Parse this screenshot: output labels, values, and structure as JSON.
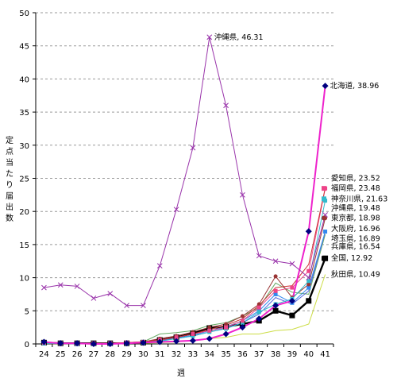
{
  "chart_data": {
    "type": "line",
    "xlabel": "週",
    "ylabel": "定点当たり届出数",
    "ylim": [
      0,
      50
    ],
    "yticks": [
      0,
      5,
      10,
      15,
      20,
      25,
      30,
      35,
      40,
      45,
      50
    ],
    "grid": "horizontal-dashed",
    "categories": [
      "24",
      "25",
      "26",
      "27",
      "28",
      "29",
      "30",
      "31",
      "32",
      "33",
      "34",
      "35",
      "36",
      "37",
      "38",
      "39",
      "40",
      "41"
    ],
    "series": [
      {
        "name": "沖縄県",
        "color": "#9933aa",
        "marker": "cross",
        "width": 1,
        "values": [
          8.5,
          8.9,
          8.7,
          6.9,
          7.6,
          5.8,
          5.8,
          11.8,
          20.3,
          29.6,
          46.31,
          36.0,
          22.5,
          13.3,
          12.5,
          12.1,
          10.0,
          19.48
        ],
        "label": "沖縄県, 46.31",
        "label_at": 10
      },
      {
        "name": "北海道",
        "color": "#ee22cc",
        "marker": "diamond",
        "marker_color": "#000080",
        "width": 2,
        "values": [
          0.3,
          0.1,
          0.1,
          0.0,
          0.0,
          0.1,
          0.2,
          0.3,
          0.4,
          0.5,
          0.8,
          1.5,
          2.5,
          3.8,
          5.8,
          6.5,
          17.0,
          38.96
        ],
        "label": "北海道, 38.96",
        "label_at": 17
      },
      {
        "name": "愛知県",
        "color": "#cc3333",
        "marker": "none",
        "width": 1,
        "values": [
          0.2,
          0.1,
          0.1,
          0.1,
          0.1,
          0.2,
          0.3,
          0.6,
          1.0,
          1.5,
          2.2,
          2.8,
          3.8,
          5.8,
          8.5,
          8.8,
          12.0,
          23.52
        ]
      },
      {
        "name": "福岡県",
        "color": "#ee4488",
        "marker": "square",
        "marker_color": "#ee4488",
        "width": 1,
        "values": [
          0.2,
          0.1,
          0.1,
          0.1,
          0.1,
          0.2,
          0.3,
          0.6,
          1.0,
          1.5,
          2.0,
          2.5,
          3.5,
          5.5,
          8.0,
          8.5,
          11.0,
          23.48
        ]
      },
      {
        "name": "神奈川県",
        "color": "#33bbcc",
        "marker": "square",
        "marker_color": "#33bbcc",
        "width": 1,
        "values": [
          0.1,
          0.1,
          0.1,
          0.1,
          0.1,
          0.1,
          0.2,
          0.4,
          0.8,
          1.2,
          1.8,
          2.3,
          3.2,
          4.8,
          6.0,
          6.8,
          9.5,
          21.63
        ]
      },
      {
        "name": "東京都",
        "color": "#993333",
        "marker": "circle",
        "marker_color": "#993333",
        "width": 1,
        "values": [
          0.2,
          0.1,
          0.1,
          0.1,
          0.1,
          0.2,
          0.3,
          0.8,
          1.2,
          1.8,
          2.5,
          3.0,
          4.2,
          6.0,
          10.2,
          7.0,
          9.0,
          18.98
        ]
      },
      {
        "name": "大阪府",
        "color": "#3388ee",
        "marker": "square",
        "marker_color": "#3388ee",
        "width": 1,
        "values": [
          0.1,
          0.1,
          0.0,
          0.0,
          0.0,
          0.1,
          0.2,
          0.5,
          0.9,
          1.3,
          2.0,
          2.6,
          3.5,
          5.0,
          7.5,
          6.2,
          8.5,
          16.96
        ]
      },
      {
        "name": "埼玉県",
        "color": "#5566dd",
        "marker": "none",
        "width": 1,
        "values": [
          0.1,
          0.1,
          0.1,
          0.1,
          0.1,
          0.1,
          0.2,
          0.5,
          0.8,
          1.2,
          1.8,
          2.4,
          3.2,
          4.5,
          7.0,
          6.0,
          8.0,
          16.89
        ]
      },
      {
        "name": "兵庫県",
        "color": "#66aa66",
        "marker": "none",
        "width": 1,
        "values": [
          0.1,
          0.1,
          0.1,
          0.1,
          0.1,
          0.2,
          0.3,
          1.5,
          1.7,
          2.0,
          2.8,
          3.2,
          4.2,
          5.5,
          9.2,
          7.8,
          7.5,
          16.54
        ]
      },
      {
        "name": "全国",
        "color": "#000000",
        "marker": "square",
        "marker_color": "#000000",
        "width": 2.4,
        "marker_size": 7,
        "values": [
          0.2,
          0.1,
          0.1,
          0.1,
          0.1,
          0.1,
          0.2,
          0.6,
          1.0,
          1.6,
          2.4,
          2.6,
          3.0,
          3.5,
          5.0,
          4.3,
          6.5,
          12.92
        ]
      },
      {
        "name": "秋田県",
        "color": "#ccdd44",
        "marker": "none",
        "width": 1,
        "values": [
          0.1,
          0.0,
          0.0,
          0.0,
          0.0,
          0.1,
          0.1,
          0.2,
          0.3,
          0.5,
          0.8,
          1.0,
          1.5,
          1.5,
          2.0,
          2.2,
          3.0,
          10.49
        ]
      }
    ],
    "end_labels": [
      {
        "text": "愛知県, 23.52",
        "y": 25.0,
        "marker_color": "#cc3333"
      },
      {
        "text": "福岡県, 23.48",
        "y": 23.48,
        "marker_color": "#ee4488",
        "marker": "square"
      },
      {
        "text": "神奈川県, 21.63",
        "y": 21.9,
        "marker_color": "#33bbcc",
        "marker": "square"
      },
      {
        "text": "沖縄県, 19.48",
        "y": 20.5,
        "marker_color": "#9933aa"
      },
      {
        "text": "東京都, 18.98",
        "y": 19.0,
        "marker_color": "#993333",
        "marker": "circle"
      },
      {
        "text": "大阪府, 16.96",
        "y": 17.4,
        "marker_color": "#3388ee"
      },
      {
        "text": "埼玉県, 16.89",
        "y": 15.9,
        "marker_color": "#5566dd"
      },
      {
        "text": "兵庫県, 16.54",
        "y": 14.7,
        "marker_color": "#66aa66"
      },
      {
        "text": "全国, 12.92",
        "y": 12.92,
        "marker_color": "#000000",
        "marker": "square"
      },
      {
        "text": "秋田県, 10.49",
        "y": 10.49,
        "marker_color": "#ccdd44"
      }
    ]
  }
}
